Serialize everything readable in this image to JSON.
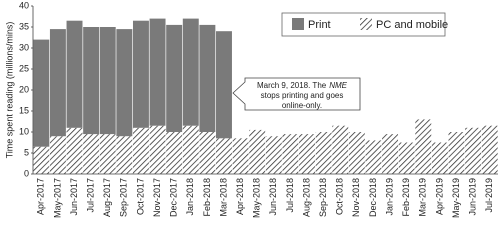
{
  "chart_data": {
    "type": "bar",
    "stacked": true,
    "y_label": "Time spent reading (millions/mins)",
    "categories": [
      "Apr-2017",
      "May-2017",
      "Jun-2017",
      "Jul-2017",
      "Aug-2017",
      "Sep-2017",
      "Oct-2017",
      "Nov-2017",
      "Dec-2017",
      "Jan-2018",
      "Feb-2018",
      "Mar-2018",
      "Apr-2018",
      "May-2018",
      "Jun-2018",
      "Jul-2018",
      "Aug-2018",
      "Sep-2018",
      "Oct-2018",
      "Nov-2018",
      "Dec-2018",
      "Jan-2019",
      "Feb-2019",
      "Mar-2019",
      "Apr-2019",
      "May-2019",
      "Jun-2019",
      "Jul-2019"
    ],
    "series": [
      {
        "name": "Print",
        "color": "#7a7a7a",
        "pattern": "solid",
        "values": [
          25.5,
          25.5,
          25.5,
          25.5,
          25.5,
          25.5,
          25.5,
          25.5,
          25.5,
          25.5,
          25.5,
          25.5,
          null,
          null,
          null,
          null,
          null,
          null,
          null,
          null,
          null,
          null,
          null,
          null,
          null,
          null,
          null,
          null
        ]
      },
      {
        "name": "PC and mobile",
        "color": "#333333",
        "pattern": "hatch",
        "values": [
          6.5,
          9,
          11,
          9.5,
          9.5,
          9,
          11,
          11.5,
          10,
          11.5,
          10,
          8.5,
          8.5,
          10.5,
          9,
          9.5,
          9.5,
          10,
          11.5,
          10,
          8,
          9.5,
          7.5,
          13,
          7.5,
          10,
          11,
          11.5
        ]
      }
    ],
    "ylim": [
      0,
      40
    ],
    "yticks": [
      0,
      5,
      10,
      15,
      20,
      25,
      30,
      35,
      40
    ],
    "grid": false,
    "legend": "top-right",
    "annotation": [
      [
        {
          "text": "March 9, 2018. The",
          "style": "normal"
        },
        {
          "text": "NME",
          "style": "italic"
        }
      ],
      [
        {
          "text": "stops printing and goes",
          "style": "normal"
        }
      ],
      [
        {
          "text": "online-only.",
          "style": "normal"
        }
      ]
    ]
  }
}
